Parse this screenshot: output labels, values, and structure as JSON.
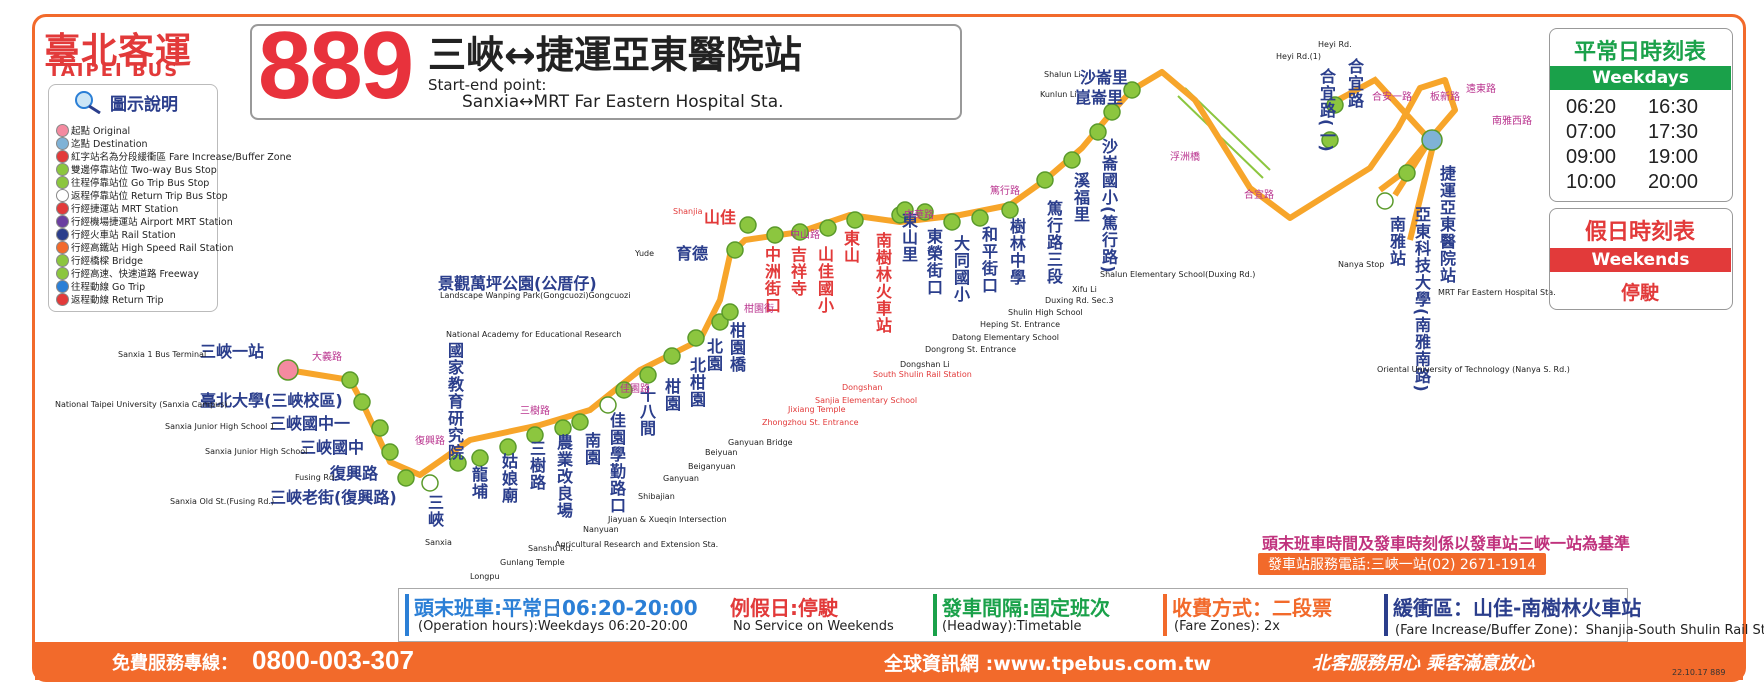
{
  "logo": {
    "cn": "臺北客運",
    "en": "TAIPEI BUS"
  },
  "route": {
    "number": "889",
    "name_cn": "三峽↔捷運亞東醫院站",
    "en_label": "Start-end point:",
    "en_name": "Sanxia↔MRT Far Eastern Hospital Sta."
  },
  "legend": {
    "title": "圖示說明",
    "items": [
      {
        "label": "起點 Original",
        "color": "#f48aa0"
      },
      {
        "label": "迄點 Destination",
        "color": "#7fb2d6"
      },
      {
        "label": "紅字站名為分段緩衝區 Fare Increase/Buffer Zone",
        "color": "#e23a3a"
      },
      {
        "label": "雙邊停靠站位 Two-way Bus Stop",
        "color": "#8cc63f"
      },
      {
        "label": "往程停靠站位 Go Trip Bus Stop",
        "color": "#8cc63f"
      },
      {
        "label": "返程停靠站位 Return Trip Bus Stop",
        "color": "#ffffff"
      },
      {
        "label": "行經捷運站 MRT Station",
        "color": "#e23a3a"
      },
      {
        "label": "行經機場捷運站 Airport MRT Station",
        "color": "#6b3fa0"
      },
      {
        "label": "行經火車站 Rail Station",
        "color": "#2b3e8c"
      },
      {
        "label": "行經高鐵站 High Speed Rail Station",
        "color": "#f26a2b"
      },
      {
        "label": "行經橋樑 Bridge",
        "color": "#8cc63f"
      },
      {
        "label": "行經高速、快速道路 Freeway",
        "color": "#8cc63f"
      },
      {
        "label": "往程動線 Go Trip",
        "color": "#2b7fd6"
      },
      {
        "label": "返程動線 Return Trip",
        "color": "#e23a3a"
      }
    ]
  },
  "timetable": {
    "weekday_cn": "平常日時刻表",
    "weekday_en": "Weekdays Timetable",
    "times": [
      "06:20",
      "16:30",
      "07:00",
      "17:30",
      "09:00",
      "19:00",
      "10:00",
      "20:00"
    ],
    "weekend_cn": "假日時刻表",
    "weekend_en": "Weekends Timetable",
    "weekend_value": "停駛"
  },
  "stops": [
    {
      "cn": "三峽一站",
      "en": "Sanxia 1 Bus Terminal"
    },
    {
      "cn": "臺北大學(三峽校區)",
      "en": "National Taipei University (Sanxia Campus)"
    },
    {
      "cn": "三峽國中一",
      "en": "Sanxia Junior High School 1"
    },
    {
      "cn": "三峽國中",
      "en": "Sanxia Junior High School"
    },
    {
      "cn": "復興路",
      "en": "Fusing Rd."
    },
    {
      "cn": "三峽老街(復興路)",
      "en": "Sanxia Old St.(Fusing Rd.)"
    },
    {
      "cn": "三峽",
      "en": "Sanxia"
    },
    {
      "cn": "國家教育研究院",
      "en": "National Academy for Educational Research"
    },
    {
      "cn": "龍埔",
      "en": "Longpu"
    },
    {
      "cn": "姑娘廟",
      "en": "Gunlang Temple"
    },
    {
      "cn": "三樹路",
      "en": "Sanshu Rd."
    },
    {
      "cn": "農業改良場",
      "en": "Agricultural Research and Extension Sta."
    },
    {
      "cn": "南園",
      "en": "Nanyuan"
    },
    {
      "cn": "佳園學勤路口",
      "en": "Jiayuan & Xueqin Intersection"
    },
    {
      "cn": "十八間",
      "en": "Shibajian"
    },
    {
      "cn": "柑園",
      "en": "Ganyuan"
    },
    {
      "cn": "北柑園",
      "en": "Beiganyuan"
    },
    {
      "cn": "北園",
      "en": "Beiyuan"
    },
    {
      "cn": "柑園橋",
      "en": "Ganyuan Bridge"
    },
    {
      "cn": "景觀萬坪公園(公厝仔)",
      "en": "Landscape Wanping Park(Gongcuozi)Gongcuozi"
    },
    {
      "cn": "育德",
      "en": "Yude"
    },
    {
      "cn": "山佳",
      "en": "Shanjia"
    },
    {
      "cn": "中洲街口",
      "en": "Zhongzhou St. Entrance"
    },
    {
      "cn": "吉祥寺",
      "en": "Jixiang Temple"
    },
    {
      "cn": "山佳國小",
      "en": "Sanjia Elementary School"
    },
    {
      "cn": "東山",
      "en": "Dongshan"
    },
    {
      "cn": "南樹林火車站",
      "en": "South Shulin Rail Station"
    },
    {
      "cn": "東山里",
      "en": "Dongshan Li"
    },
    {
      "cn": "東榮街口",
      "en": "Dongrong St. Entrance"
    },
    {
      "cn": "大同國小",
      "en": "Datong Elementary School"
    },
    {
      "cn": "和平街口",
      "en": "Heping St. Entrance"
    },
    {
      "cn": "樹林中學",
      "en": "Shulin High School"
    },
    {
      "cn": "篤行路三段",
      "en": "Duxing Rd. Sec.3"
    },
    {
      "cn": "溪福里",
      "en": "Xifu Li"
    },
    {
      "cn": "沙崙國小(篤行路)",
      "en": "Shalun Elementary School(Duxing Rd.)"
    },
    {
      "cn": "崑崙里",
      "en": "Kunlun Li"
    },
    {
      "cn": "沙崙里",
      "en": "Shalun Li"
    },
    {
      "cn": "合宜路(一)",
      "en": "Heyi Rd.(1)"
    },
    {
      "cn": "合宜路",
      "en": "Heyi Rd."
    },
    {
      "cn": "南雅站",
      "en": "Nanya Stop"
    },
    {
      "cn": "亞東科技大學(南雅南路)",
      "en": "Oriental University of Technology (Nanya S. Rd.)"
    },
    {
      "cn": "捷運亞東醫院站",
      "en": "MRT Far Eastern Hospital Sta."
    }
  ],
  "roads": [
    "大義路",
    "復興路",
    "三樹路",
    "佳園路",
    "柑園街",
    "中山路",
    "中華路",
    "篤行路",
    "浮洲橋",
    "合宜路",
    "合安一路",
    "板新路",
    "遠東路",
    "南雅西路"
  ],
  "notes": {
    "base": "頭末班車時間及發車時刻係以發車站三峽一站為基準",
    "phone": "發車站服務電話:三峽一站(02) 2671-1914"
  },
  "info": {
    "hours_cn": "頭末班車:平常日06:20-20:00",
    "hours_en": "(Operation hours):Weekdays 06:20-20:00",
    "weekend_cn": "例假日:停駛",
    "weekend_en": "No Service on Weekends",
    "headway_cn": "發車間隔:固定班次",
    "headway_en": "(Headway):Timetable",
    "fare_cn": "收費方式：二段票",
    "fare_en": "(Fare Zones): 2x",
    "buffer_cn": "緩衝區：山佳-南樹林火車站",
    "buffer_en": "(Fare Increase/Buffer Zone)：Shanjia-South Shulin Rail Sta."
  },
  "footer": {
    "hotline_label": "免費服務專線：",
    "hotline": "0800-003-307",
    "web": "全球資訊網 :www.tpebus.com.tw",
    "slogan": "北客服務用心 乘客滿意放心",
    "date": "22.10.17 889"
  }
}
